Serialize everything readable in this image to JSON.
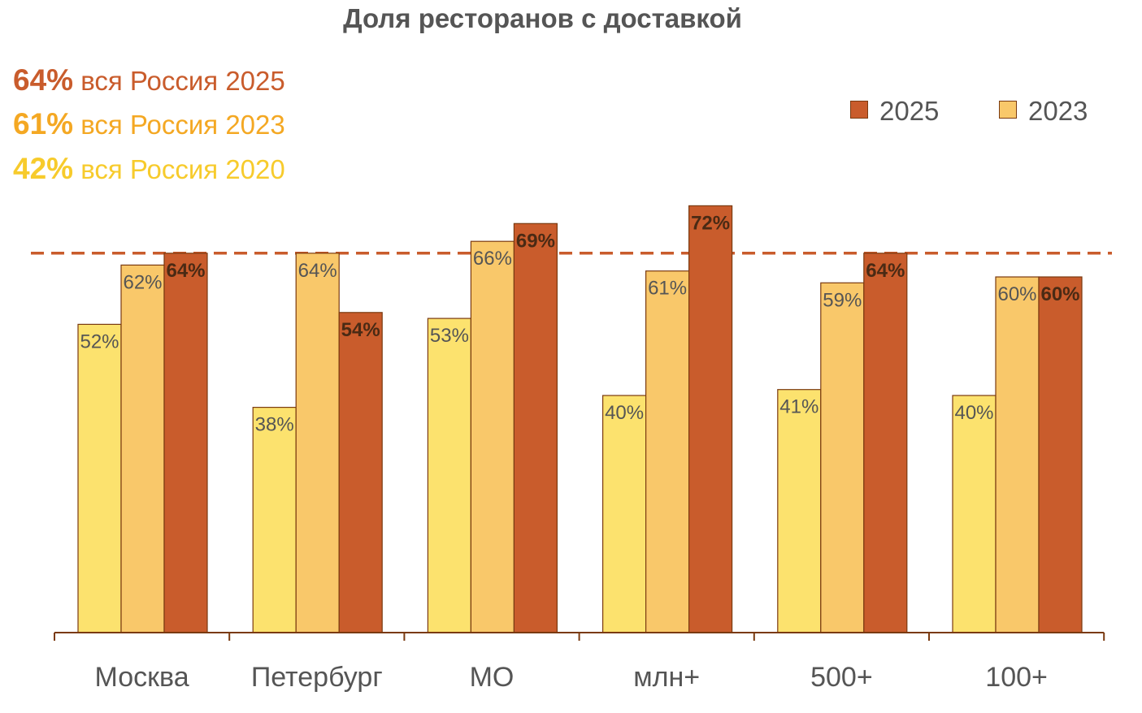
{
  "chart_data": {
    "type": "bar",
    "title": "Доля ресторанов с доставкой",
    "categories": [
      "Москва",
      "Петербург",
      "МО",
      "млн+",
      "500+",
      "100+"
    ],
    "series": [
      {
        "name": "",
        "color": "#FCE26E",
        "values": [
          52,
          38,
          53,
          40,
          41,
          40
        ],
        "labels": [
          "52%",
          "38%",
          "53%",
          "40%",
          "41%",
          "40%"
        ]
      },
      {
        "name": "2023",
        "color": "#F9C86A",
        "values": [
          62,
          64,
          66,
          61,
          59,
          60
        ],
        "labels": [
          "62%",
          "64%",
          "66%",
          "61%",
          "59%",
          "60%"
        ]
      },
      {
        "name": "2025",
        "color": "#C95C2C",
        "values": [
          64,
          54,
          69,
          72,
          64,
          60
        ],
        "labels": [
          "64%",
          "54%",
          "69%",
          "72%",
          "64%",
          "60%"
        ]
      }
    ],
    "reference_line": {
      "value": 64,
      "style": "dashed",
      "color": "#C95C2C"
    },
    "ylim": [
      0,
      75
    ],
    "legend_placement": "top-right",
    "grid": false
  },
  "summary": [
    {
      "value": "64%",
      "text": "вся Россия 2025",
      "color": "#C95C2C"
    },
    {
      "value": "61%",
      "text": "вся Россия 2023",
      "color": "#F4A823"
    },
    {
      "value": "42%",
      "text": "вся Россия 2020",
      "color": "#F7CB2C"
    }
  ],
  "legend": [
    {
      "label": "2025",
      "color": "#C95C2C"
    },
    {
      "label": "2023",
      "color": "#F9C86A"
    }
  ]
}
